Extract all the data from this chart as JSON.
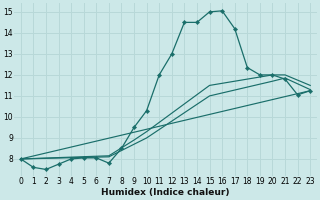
{
  "xlabel": "Humidex (Indice chaleur)",
  "bg_color": "#cce8e8",
  "grid_color": "#b8d8d8",
  "line_color": "#1a6e6a",
  "xlim": [
    -0.5,
    23.5
  ],
  "ylim": [
    7.2,
    15.4
  ],
  "xticks": [
    0,
    1,
    2,
    3,
    4,
    5,
    6,
    7,
    8,
    9,
    10,
    11,
    12,
    13,
    14,
    15,
    16,
    17,
    18,
    19,
    20,
    21,
    22,
    23
  ],
  "yticks": [
    8,
    9,
    10,
    11,
    12,
    13,
    14,
    15
  ],
  "figsize": [
    3.2,
    2.0
  ],
  "dpi": 100,
  "series_main": {
    "x": [
      0,
      1,
      2,
      3,
      4,
      5,
      6,
      7,
      8,
      9,
      10,
      11,
      12,
      13,
      14,
      15,
      16,
      17,
      18,
      19,
      20,
      21,
      22,
      23
    ],
    "y": [
      8.0,
      7.6,
      7.5,
      7.75,
      8.0,
      8.05,
      8.05,
      7.8,
      8.5,
      9.5,
      10.3,
      12.0,
      13.0,
      14.5,
      14.5,
      15.0,
      15.05,
      14.2,
      12.35,
      12.0,
      12.0,
      11.8,
      11.05,
      11.25
    ]
  },
  "series_extra": [
    {
      "x": [
        0,
        23
      ],
      "y": [
        8.0,
        11.25
      ]
    },
    {
      "x": [
        0,
        7,
        9,
        10,
        15,
        20,
        21,
        23
      ],
      "y": [
        8.0,
        8.1,
        8.7,
        9.0,
        11.0,
        11.7,
        11.85,
        11.3
      ]
    },
    {
      "x": [
        0,
        7,
        9,
        10,
        15,
        20,
        21,
        23
      ],
      "y": [
        8.0,
        8.15,
        8.9,
        9.3,
        11.5,
        12.0,
        12.0,
        11.5
      ]
    }
  ]
}
